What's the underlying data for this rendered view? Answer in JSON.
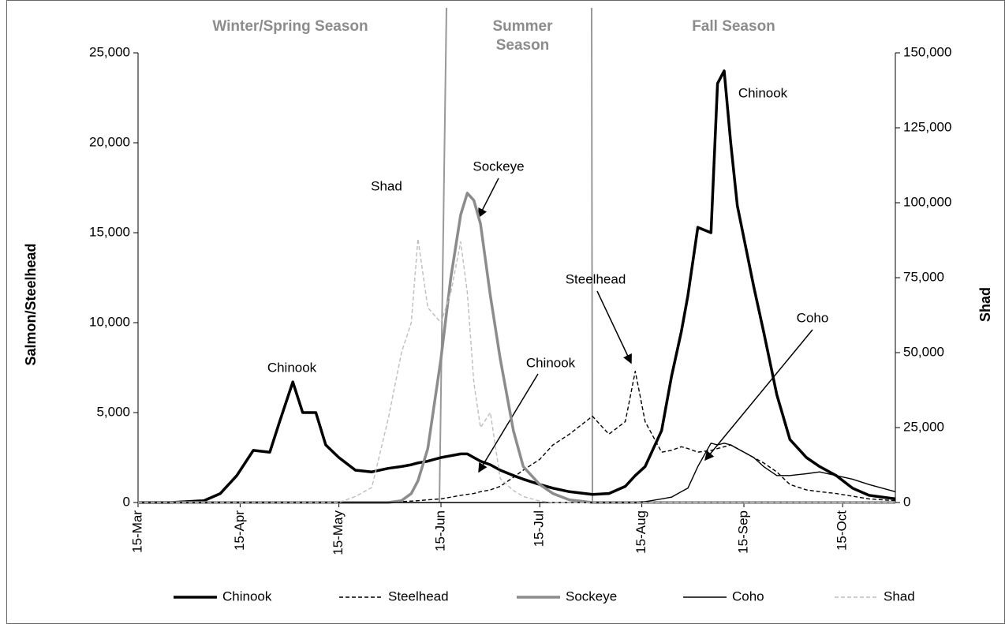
{
  "chart_data": {
    "type": "line",
    "ylabel": "Salmon/Steelhead",
    "y2label": "Shad",
    "seasons": [
      "Winter/Spring Season",
      "Summer Season",
      "Fall Season"
    ],
    "annotations": [
      "Chinook",
      "Shad",
      "Sockeye",
      "Chinook",
      "Steelhead",
      "Coho",
      "Chinook"
    ],
    "x": [
      "15-Mar",
      "25-Mar",
      "4-Apr",
      "9-Apr",
      "14-Apr",
      "19-Apr",
      "24-Apr",
      "27-Apr",
      "1-May",
      "4-May",
      "8-May",
      "11-May",
      "15-May",
      "20-May",
      "25-May",
      "30-May",
      "3-Jun",
      "6-Jun",
      "8-Jun",
      "11-Jun",
      "15-Jun",
      "18-Jun",
      "21-Jun",
      "23-Jun",
      "25-Jun",
      "27-Jun",
      "30-Jun",
      "3-Jul",
      "7-Jul",
      "10-Jul",
      "15-Jul",
      "19-Jul",
      "24-Jul",
      "31-Jul",
      "5-Aug",
      "10-Aug",
      "13-Aug",
      "16-Aug",
      "21-Aug",
      "24-Aug",
      "27-Aug",
      "29-Aug",
      "1-Sep",
      "5-Sep",
      "7-Sep",
      "9-Sep",
      "11-Sep",
      "13-Sep",
      "18-Sep",
      "21-Sep",
      "25-Sep",
      "29-Sep",
      "4-Oct",
      "8-Oct",
      "13-Oct",
      "18-Oct",
      "23-Oct",
      "31-Oct"
    ],
    "xlim": [
      "15-Mar",
      "31-Oct"
    ],
    "xticks": [
      "15-Mar",
      "15-Apr",
      "15-May",
      "15-Jun",
      "15-Jul",
      "15-Aug",
      "15-Sep",
      "15-Oct"
    ],
    "ylim": [
      0,
      25000
    ],
    "yticks": [
      0,
      {
        "value": 5000,
        "label": "5,000"
      },
      {
        "value": 10000,
        "label": "10,000"
      },
      {
        "value": 15000,
        "label": "15,000"
      },
      {
        "value": 20000,
        "label": "20,000"
      },
      {
        "value": 25000,
        "label": "25,000"
      }
    ],
    "y2lim": [
      0,
      150000
    ],
    "y2ticks": [
      0,
      {
        "value": 25000,
        "label": "25,000"
      },
      {
        "value": 50000,
        "label": "50,000"
      },
      {
        "value": 75000,
        "label": "75,000"
      },
      {
        "value": 100000,
        "label": "100,000"
      },
      {
        "value": 125000,
        "label": "125,000"
      },
      {
        "value": 150000,
        "label": "150,000"
      }
    ],
    "grid": false,
    "legend": "bottom",
    "series": [
      {
        "name": "Chinook",
        "color": "#000000",
        "line_style": "solid",
        "line_width": "thick",
        "values": [
          0,
          0,
          100,
          500,
          1500,
          2900,
          2800,
          4500,
          6700,
          5000,
          5000,
          3200,
          2500,
          1800,
          1700,
          1900,
          2000,
          2100,
          2200,
          2300,
          2500,
          2600,
          2700,
          2700,
          2500,
          2300,
          2100,
          1800,
          1500,
          1300,
          1000,
          800,
          600,
          450,
          500,
          900,
          1500,
          2000,
          4000,
          7000,
          9500,
          11500,
          15300,
          15000,
          23300,
          24000,
          20000,
          16500,
          12000,
          9500,
          6000,
          3500,
          2500,
          2000,
          1500,
          800,
          400,
          200
        ]
      },
      {
        "name": "Steelhead",
        "color": "#000000",
        "line_style": "dashed",
        "line_width": "thin",
        "values": [
          0,
          0,
          0,
          0,
          0,
          0,
          0,
          0,
          0,
          0,
          0,
          0,
          0,
          0,
          0,
          0,
          50,
          80,
          100,
          150,
          200,
          300,
          400,
          450,
          500,
          600,
          700,
          900,
          1400,
          1800,
          2400,
          3200,
          3800,
          4800,
          3800,
          4500,
          7300,
          4500,
          2800,
          2900,
          3100,
          3000,
          2800,
          2900,
          3000,
          3100,
          3200,
          3000,
          2500,
          2200,
          1700,
          1000,
          700,
          600,
          500,
          350,
          200,
          100
        ]
      },
      {
        "name": "Sockeye",
        "color": "#8c8c8c",
        "line_style": "solid",
        "line_width": "thick",
        "values": [
          0,
          0,
          0,
          0,
          0,
          0,
          0,
          0,
          0,
          0,
          0,
          0,
          0,
          0,
          0,
          0,
          100,
          500,
          1200,
          3000,
          8000,
          12500,
          16000,
          17200,
          16800,
          15500,
          11500,
          8000,
          4000,
          2000,
          1000,
          500,
          150,
          0,
          0,
          0,
          0,
          0,
          0,
          0,
          0,
          0,
          0,
          0,
          0,
          0,
          0,
          0,
          0,
          0,
          0,
          0,
          0,
          0,
          0,
          0,
          0,
          0
        ]
      },
      {
        "name": "Coho",
        "color": "#000000",
        "line_style": "solid",
        "line_width": "thin",
        "values": [
          0,
          0,
          0,
          0,
          0,
          0,
          0,
          0,
          0,
          0,
          0,
          0,
          0,
          0,
          0,
          0,
          0,
          0,
          0,
          0,
          0,
          0,
          0,
          0,
          0,
          0,
          0,
          0,
          0,
          0,
          0,
          0,
          0,
          0,
          0,
          0,
          0,
          50,
          200,
          300,
          600,
          800,
          2000,
          3300,
          3200,
          3300,
          3200,
          3000,
          2500,
          2000,
          1500,
          1500,
          1600,
          1700,
          1500,
          1300,
          1000,
          600
        ]
      },
      {
        "name": "Shad",
        "color": "#bdbdbd",
        "line_style": "dashed",
        "line_width": "thin",
        "axis": "y2",
        "values": [
          0,
          0,
          0,
          0,
          0,
          0,
          0,
          0,
          0,
          0,
          0,
          0,
          0,
          2000,
          5000,
          28000,
          50000,
          60000,
          88000,
          65000,
          60000,
          70000,
          87000,
          70000,
          40000,
          25000,
          30000,
          8000,
          4000,
          2000,
          500,
          0,
          0,
          0,
          0,
          0,
          0,
          0,
          0,
          0,
          0,
          0,
          0,
          0,
          0,
          0,
          0,
          0,
          0,
          0,
          0,
          0,
          0,
          0,
          0,
          0,
          0,
          0
        ]
      }
    ]
  }
}
